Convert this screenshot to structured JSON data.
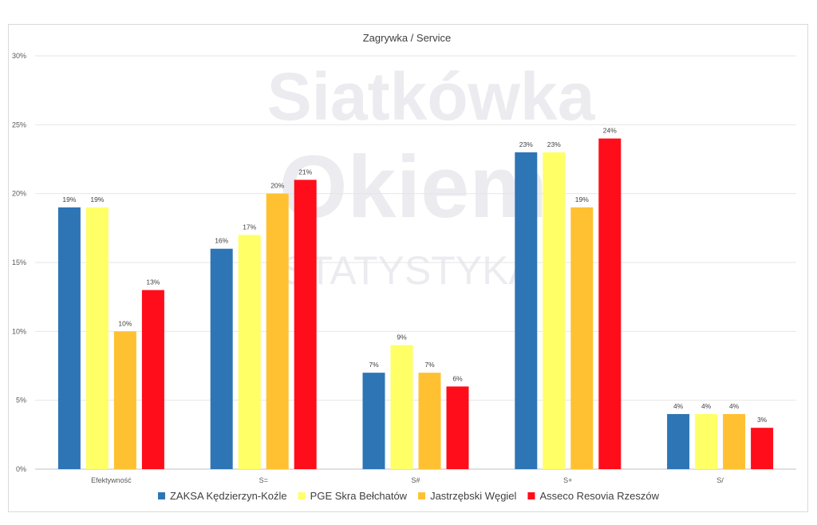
{
  "chart_data": {
    "type": "bar",
    "title": "Zagrywka / Service",
    "categories": [
      "Efektywność",
      "S=",
      "S#",
      "S+",
      "S/"
    ],
    "series": [
      {
        "name": "ZAKSA Kędzierzyn-Koźle",
        "color": "#2e75b6",
        "values": [
          19,
          16,
          7,
          23,
          4
        ]
      },
      {
        "name": "PGE Skra Bełchatów",
        "color": "#ffff66",
        "values": [
          19,
          17,
          9,
          23,
          4
        ]
      },
      {
        "name": "Jastrzębski Węgiel",
        "color": "#ffc132",
        "values": [
          10,
          20,
          7,
          19,
          4
        ]
      },
      {
        "name": "Asseco Resovia Rzeszów",
        "color": "#ff0d1a",
        "values": [
          13,
          21,
          6,
          24,
          3
        ]
      }
    ],
    "ylim": [
      0,
      30
    ],
    "yticks": [
      0,
      5,
      10,
      15,
      20,
      25,
      30
    ],
    "value_suffix": "%",
    "grid": true,
    "legend": "bottom",
    "xlabel": "",
    "ylabel": ""
  },
  "watermark": {
    "line1": "Siatkówka",
    "line2": "Okiem",
    "line3": "STATYSTYKA"
  }
}
